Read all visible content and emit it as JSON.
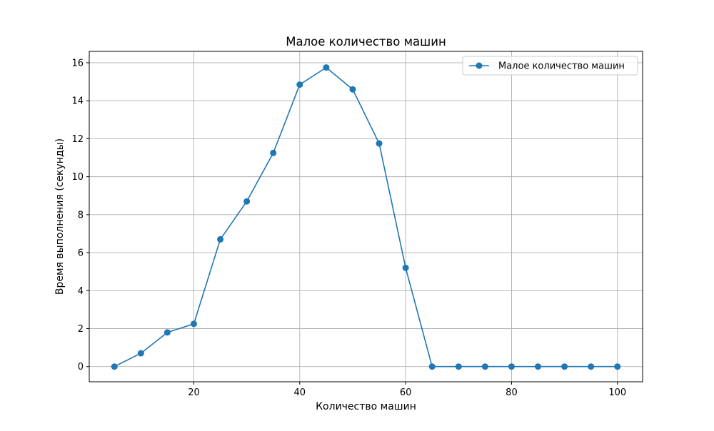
{
  "colors": {
    "series": "#1f77b4",
    "grid": "#b0b0b0",
    "axis": "#000000",
    "background": "#ffffff",
    "legend_border": "#cccccc"
  },
  "chart_data": {
    "type": "line",
    "title": "Малое количество машин",
    "xlabel": "Количество машин",
    "ylabel": "Время выполнения (секунды)",
    "xlim": [
      0.25,
      104.75
    ],
    "ylim": [
      -0.8,
      16.6
    ],
    "xticks": [
      20,
      40,
      60,
      80,
      100
    ],
    "yticks": [
      0,
      2,
      4,
      6,
      8,
      10,
      12,
      14,
      16
    ],
    "grid": true,
    "legend_position": "top-right",
    "series": [
      {
        "name": "Малое количество машин",
        "marker": "circle",
        "x": [
          5,
          10,
          15,
          20,
          25,
          30,
          35,
          40,
          45,
          50,
          55,
          60,
          65,
          70,
          75,
          80,
          85,
          90,
          95,
          100
        ],
        "y": [
          0.0,
          0.7,
          1.8,
          2.25,
          6.7,
          8.7,
          11.25,
          14.85,
          15.75,
          14.6,
          11.75,
          5.2,
          0.0,
          0.0,
          0.0,
          0.0,
          0.0,
          0.0,
          0.0,
          0.0
        ]
      }
    ]
  }
}
